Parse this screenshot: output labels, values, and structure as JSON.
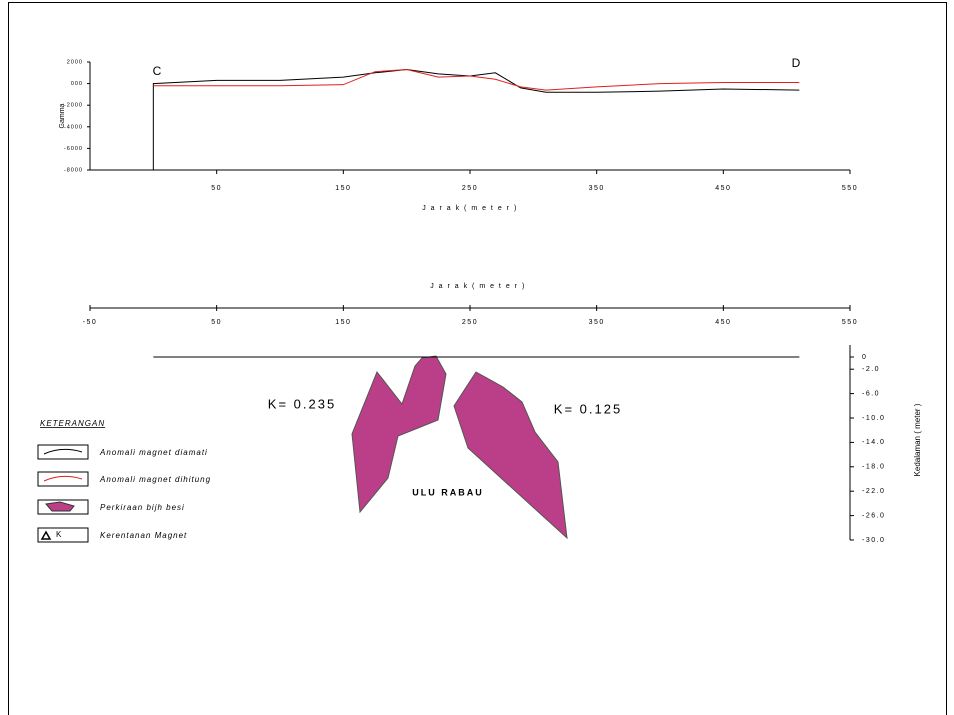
{
  "chart_data": [
    {
      "type": "line",
      "ylabel": "Gamma",
      "xlabel": "J a r a k ( m e t e r )",
      "annotations": [
        "C",
        "D"
      ],
      "x": [
        0,
        0,
        50,
        100,
        150,
        175,
        200,
        225,
        250,
        270,
        290,
        310,
        350,
        400,
        450,
        510
      ],
      "series": [
        {
          "name": "Anomali magnet diamati",
          "color": "#000000",
          "values": [
            -8000,
            0,
            300,
            300,
            600,
            1000,
            1300,
            900,
            700,
            1000,
            -400,
            -800,
            -800,
            -700,
            -500,
            -600
          ]
        },
        {
          "name": "Anomali magnet dihitung",
          "color": "#e0201c",
          "values": [
            null,
            -200,
            -200,
            -200,
            -100,
            1100,
            1300,
            600,
            700,
            400,
            -300,
            -600,
            -300,
            0,
            100,
            100
          ]
        }
      ],
      "xlim": [
        -50,
        550
      ],
      "xticks": [
        50,
        150,
        250,
        350,
        450,
        550
      ],
      "ylim": [
        -8000,
        2000
      ],
      "yticks": [
        -8000,
        -6000,
        -4000,
        -2000,
        {
          "value": 0,
          "label": "000"
        },
        2000
      ]
    },
    {
      "type": "section",
      "xlabel": "J a r a k ( m e t e r )",
      "ylabel": "Kedalaman ( meter )",
      "annotations": [
        "K= 0.235",
        "K= 0.125",
        "ULU RABAU"
      ],
      "surface": {
        "x": [
          0,
          510
        ],
        "values": [
          0,
          0
        ]
      },
      "xlim": [
        -50,
        550
      ],
      "xticks": [
        -50,
        50,
        150,
        250,
        350,
        450,
        550
      ],
      "ylim": [
        -30,
        0
      ],
      "yticks": [
        0,
        {
          "value": -2,
          "label": "-2.0"
        },
        {
          "value": -6,
          "label": "-6.0"
        },
        {
          "value": -10,
          "label": "-10.0"
        },
        {
          "value": -14,
          "label": "-14.0"
        },
        {
          "value": -18,
          "label": "-18.0"
        },
        {
          "value": -22,
          "label": "-22.0"
        },
        {
          "value": -26,
          "label": "-26.0"
        },
        {
          "value": -30,
          "label": "-30.0"
        }
      ]
    }
  ],
  "legend": {
    "title": "KETERANGAN",
    "items": [
      "Perkiraan bijh besi",
      "Kerentanan Magnet"
    ],
    "symbol": "K"
  }
}
